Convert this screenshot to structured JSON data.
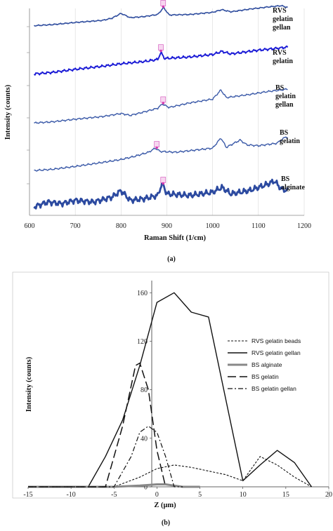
{
  "chart_data": [
    {
      "type": "line",
      "panel_label": "(a)",
      "xlabel": "Raman  Shift (1/cm)",
      "ylabel": "Intensity (counts)",
      "xlim": [
        600,
        1200
      ],
      "xticks": [
        600,
        700,
        800,
        900,
        1000,
        1100,
        1200
      ],
      "grid": true,
      "series": [
        {
          "name": "RVS gelatin gellan",
          "lines": [
            "RVS",
            "gelatin",
            "gellan"
          ],
          "points": [
            [
              610,
              0.3
            ],
            [
              650,
              0.34
            ],
            [
              700,
              0.42
            ],
            [
              760,
              0.5
            ],
            [
              780,
              0.58
            ],
            [
              800,
              0.76
            ],
            [
              820,
              0.6
            ],
            [
              850,
              0.64
            ],
            [
              880,
              0.72
            ],
            [
              893,
              0.98
            ],
            [
              905,
              0.7
            ],
            [
              950,
              0.72
            ],
            [
              1000,
              0.8
            ],
            [
              1020,
              0.9
            ],
            [
              1040,
              0.82
            ],
            [
              1080,
              0.92
            ],
            [
              1120,
              1.0
            ],
            [
              1150,
              1.05
            ],
            [
              1165,
              0.98
            ]
          ]
        },
        {
          "name": "RVS gelatin",
          "lines": [
            "RVS",
            "gelatin"
          ],
          "points": [
            [
              610,
              0.15
            ],
            [
              650,
              0.2
            ],
            [
              700,
              0.3
            ],
            [
              760,
              0.4
            ],
            [
              800,
              0.48
            ],
            [
              850,
              0.55
            ],
            [
              880,
              0.62
            ],
            [
              887,
              0.85
            ],
            [
              895,
              0.65
            ],
            [
              950,
              0.7
            ],
            [
              1000,
              0.78
            ],
            [
              1020,
              0.88
            ],
            [
              1040,
              0.8
            ],
            [
              1100,
              0.92
            ],
            [
              1140,
              0.98
            ],
            [
              1165,
              1.02
            ]
          ]
        },
        {
          "name": "BS gelatin gellan",
          "lines": [
            "BS",
            "gelatin",
            "gellan"
          ],
          "points": [
            [
              610,
              0.05
            ],
            [
              650,
              0.08
            ],
            [
              700,
              0.15
            ],
            [
              760,
              0.22
            ],
            [
              800,
              0.3
            ],
            [
              820,
              0.25
            ],
            [
              850,
              0.34
            ],
            [
              880,
              0.44
            ],
            [
              890,
              0.55
            ],
            [
              905,
              0.46
            ],
            [
              950,
              0.58
            ],
            [
              1000,
              0.68
            ],
            [
              1018,
              0.92
            ],
            [
              1030,
              0.72
            ],
            [
              1080,
              0.8
            ],
            [
              1120,
              0.88
            ],
            [
              1150,
              0.92
            ],
            [
              1165,
              0.95
            ]
          ]
        },
        {
          "name": "BS gelatin",
          "lines": [
            "BS",
            "gelatin"
          ],
          "points": [
            [
              610,
              0.05
            ],
            [
              650,
              0.08
            ],
            [
              700,
              0.15
            ],
            [
              760,
              0.25
            ],
            [
              800,
              0.32
            ],
            [
              830,
              0.4
            ],
            [
              860,
              0.5
            ],
            [
              875,
              0.6
            ],
            [
              885,
              0.52
            ],
            [
              920,
              0.5
            ],
            [
              960,
              0.55
            ],
            [
              1000,
              0.6
            ],
            [
              1018,
              0.85
            ],
            [
              1030,
              0.62
            ],
            [
              1060,
              0.8
            ],
            [
              1075,
              0.68
            ],
            [
              1100,
              0.66
            ],
            [
              1140,
              0.72
            ],
            [
              1160,
              0.88
            ],
            [
              1165,
              0.85
            ]
          ]
        },
        {
          "name": "BS alginate",
          "lines": [
            "BS",
            "alginate"
          ],
          "points": [
            [
              610,
              0.2
            ],
            [
              640,
              0.35
            ],
            [
              670,
              0.3
            ],
            [
              700,
              0.4
            ],
            [
              740,
              0.35
            ],
            [
              780,
              0.5
            ],
            [
              800,
              0.7
            ],
            [
              820,
              0.4
            ],
            [
              850,
              0.45
            ],
            [
              880,
              0.55
            ],
            [
              890,
              0.95
            ],
            [
              900,
              0.6
            ],
            [
              950,
              0.55
            ],
            [
              1000,
              0.65
            ],
            [
              1020,
              0.8
            ],
            [
              1040,
              0.6
            ],
            [
              1080,
              0.7
            ],
            [
              1120,
              0.9
            ],
            [
              1135,
              1.0
            ],
            [
              1150,
              0.75
            ],
            [
              1165,
              0.7
            ]
          ]
        }
      ]
    },
    {
      "type": "line",
      "panel_label": "(b)",
      "xlabel": "Z (μm)",
      "ylabel": "Intensity (counts)",
      "xlim": [
        -15,
        20
      ],
      "ylim": [
        0,
        170
      ],
      "xticks": [
        -15,
        -10,
        -5,
        0,
        5,
        10,
        15,
        20
      ],
      "yticks": [
        0,
        40,
        80,
        120,
        160
      ],
      "legend": "right",
      "series": [
        {
          "name": "RVS gelatin beads",
          "style": "dotted",
          "x": [
            -15,
            -10,
            -5,
            -2,
            0,
            2,
            4,
            6,
            8,
            10,
            12,
            14,
            16,
            18
          ],
          "y": [
            0,
            0,
            0,
            8,
            15,
            18,
            16,
            13,
            10,
            5,
            25,
            18,
            8,
            0
          ]
        },
        {
          "name": "RVS gelatin gellan",
          "style": "solid",
          "x": [
            -15,
            -10,
            -8,
            -6,
            -4,
            -2,
            0,
            2,
            4,
            6,
            10,
            12,
            14,
            16,
            18
          ],
          "y": [
            0,
            0,
            0,
            25,
            55,
            100,
            152,
            160,
            144,
            140,
            5,
            18,
            30,
            20,
            0
          ]
        },
        {
          "name": "BS alginate",
          "style": "double",
          "x": [
            -15,
            -10,
            -5,
            -2,
            0,
            1,
            2,
            3,
            5
          ],
          "y": [
            0,
            0,
            0,
            1,
            2,
            2,
            1,
            0,
            0
          ]
        },
        {
          "name": "BS gelatin",
          "style": "longdash",
          "x": [
            -15,
            -10,
            -6,
            -4,
            -2.5,
            -2,
            -1,
            0,
            1
          ],
          "y": [
            0,
            0,
            0,
            50,
            100,
            102,
            80,
            30,
            0
          ]
        },
        {
          "name": "BS gelatin gellan",
          "style": "dashdot",
          "x": [
            -15,
            -10,
            -5,
            -3,
            -2,
            -1,
            0,
            1,
            2,
            3
          ],
          "y": [
            0,
            0,
            0,
            25,
            45,
            50,
            45,
            25,
            0,
            0
          ]
        }
      ]
    }
  ]
}
